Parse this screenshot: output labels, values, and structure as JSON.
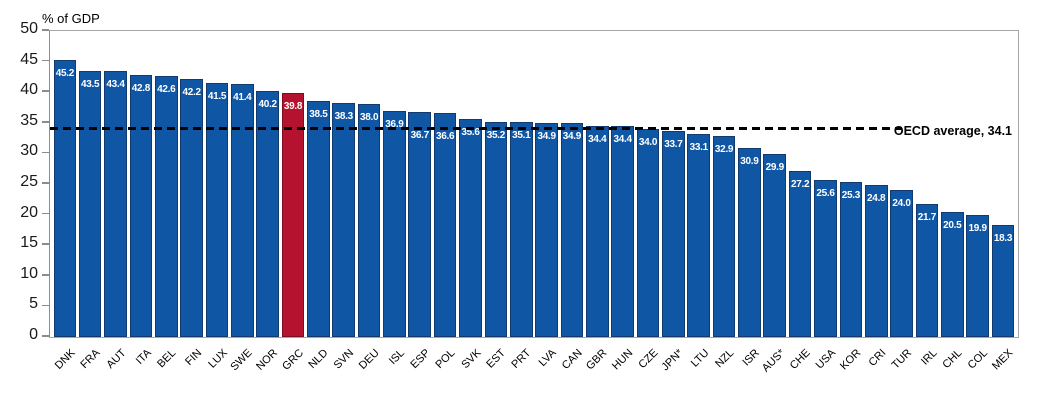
{
  "chart_data": {
    "type": "bar",
    "title": "",
    "ylabel": "% of GDP",
    "xlabel": "",
    "ylim": [
      0,
      50
    ],
    "ytick_step": 5,
    "grid": false,
    "legend": "none",
    "categories": [
      "DNK",
      "FRA",
      "AUT",
      "ITA",
      "BEL",
      "FIN",
      "LUX",
      "SWE",
      "NOR",
      "GRC",
      "NLD",
      "SVN",
      "DEU",
      "ISL",
      "ESP",
      "POL",
      "SVK",
      "EST",
      "PRT",
      "LVA",
      "CAN",
      "GBR",
      "HUN",
      "CZE",
      "JPN*",
      "LTU",
      "NZL",
      "ISR",
      "AUS*",
      "CHE",
      "USA",
      "KOR",
      "CRI",
      "TUR",
      "IRL",
      "CHL",
      "COL",
      "MEX"
    ],
    "values": [
      45.2,
      43.5,
      43.4,
      42.8,
      42.6,
      42.2,
      41.5,
      41.4,
      40.2,
      39.8,
      38.5,
      38.3,
      38.0,
      36.9,
      36.7,
      36.6,
      35.6,
      35.2,
      35.1,
      34.9,
      34.9,
      34.4,
      34.4,
      34.0,
      33.7,
      33.1,
      32.9,
      30.9,
      29.9,
      27.2,
      25.6,
      25.3,
      24.8,
      24.0,
      21.7,
      20.5,
      19.9,
      18.3
    ],
    "value_labels": [
      "45.2",
      "43.5",
      "43.4",
      "42.8",
      "42.6",
      "42.2",
      "41.5",
      "41.4",
      "40.2",
      "39.8",
      "38.5",
      "38.3",
      "38.0",
      "36.9",
      "36.7",
      "36.6",
      "35.6",
      "35.2",
      "35.1",
      "34.9",
      "34.9",
      "34.4",
      "34.4",
      "34.0",
      "33.7",
      "33.1",
      "32.9",
      "30.9",
      "29.9",
      "27.2",
      "25.6",
      "25.3",
      "24.8",
      "24.0",
      "21.7",
      "20.5",
      "19.9",
      "18.3"
    ],
    "bar_color": "#0f57a5",
    "bar_border_color": "#123a6d",
    "highlight_category": "GRC",
    "highlight_color": "#b5122f",
    "highlight_border_color": "#7d0d22",
    "value_label_color": "#ffffff",
    "average_line": {
      "value": 34.1,
      "label": "OECD average, 34.1",
      "color": "#000000",
      "style": "dashed"
    },
    "label_offset_overrides": {
      "ESP": 18,
      "POL": 18
    }
  }
}
